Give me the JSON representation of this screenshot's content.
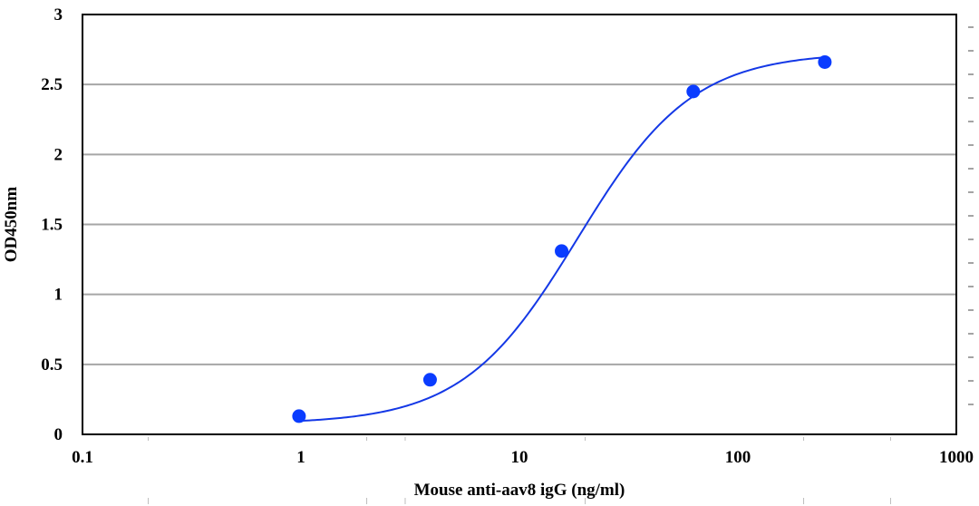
{
  "chart_data": {
    "type": "scatter",
    "title": "",
    "xlabel": "Mouse anti-aav8 igG (ng/ml)",
    "ylabel": "OD450nm",
    "xscale": "log",
    "xlim": [
      0.1,
      1000
    ],
    "ylim": [
      0,
      3
    ],
    "grid": "horizontal",
    "legend": "none",
    "x_tick_labels": [
      "0.1",
      "1",
      "10",
      "100",
      "1000"
    ],
    "y_tick_labels": [
      "0",
      "0.5",
      "1",
      "1.5",
      "2",
      "2.5",
      "3"
    ],
    "series": [
      {
        "x": [
          0.98,
          3.9,
          15.6,
          62.5,
          250
        ],
        "y": [
          0.13,
          0.39,
          1.31,
          2.45,
          2.66
        ],
        "color": "#0a3cff",
        "marker": "circle"
      }
    ],
    "fit_curve": {
      "type": "4PL",
      "bottom": 0.075,
      "top": 2.73,
      "ec50": 18.5,
      "hill": 1.65,
      "color": "#1438e6"
    }
  }
}
